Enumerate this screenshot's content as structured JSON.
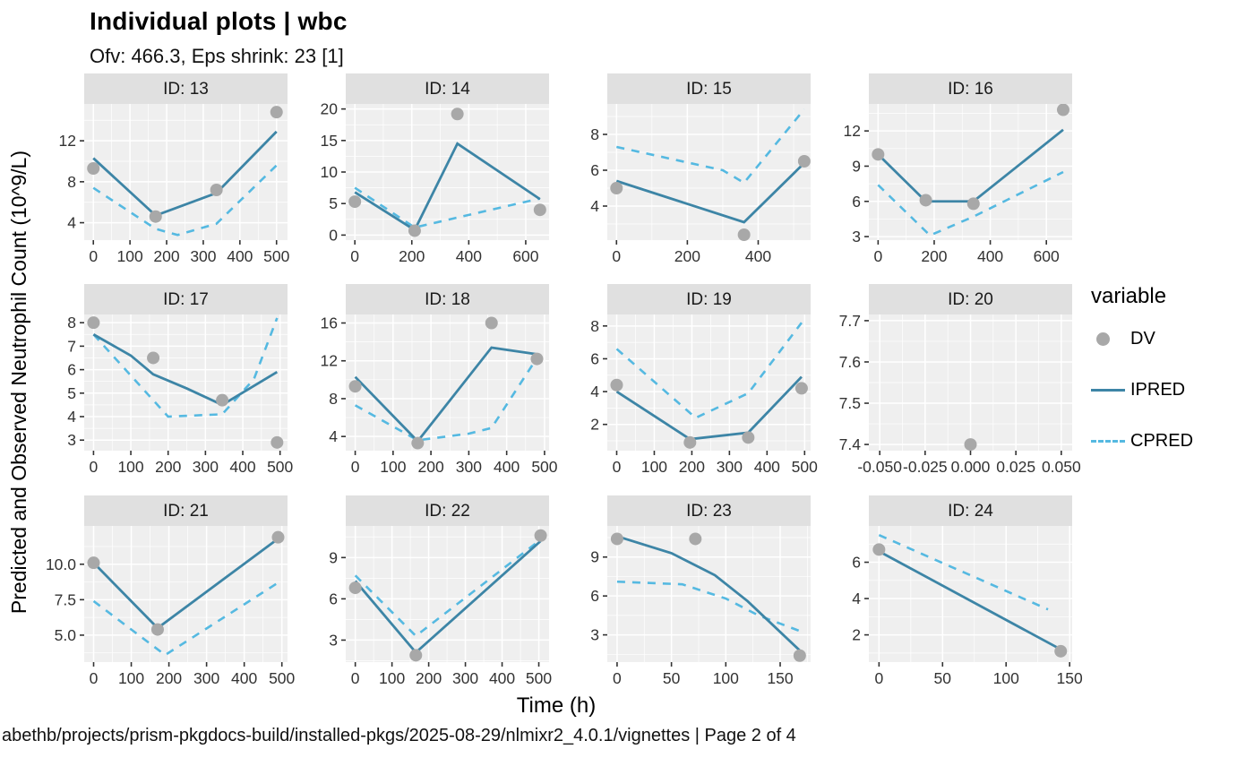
{
  "title": "Individual plots | wbc",
  "subtitle": "Ofv: 466.3, Eps shrink: 23 [1]",
  "ylabel": "Predicted and Observed Neutrophil Count (10^9/L)",
  "xlabel": "Time (h)",
  "caption": "abethb/projects/prism-pkgdocs-build/installed-pkgs/2025-08-29/nlmixr2_4.0.1/vignettes | Page 2 of 4",
  "legend": {
    "title": "variable",
    "items": [
      {
        "label": "DV",
        "type": "point"
      },
      {
        "label": "IPRED",
        "type": "solid"
      },
      {
        "label": "CPRED",
        "type": "dashed"
      }
    ]
  },
  "colors": {
    "ipred": "#3d85a6",
    "cpred": "#55b9e1",
    "dv": "#a8a8a8",
    "panel_bg": "#efefef",
    "strip_bg": "#e0e0e0",
    "grid_major": "#ffffff",
    "grid_minor": "#f8f8f8",
    "axis_text": "#333333",
    "strip_text": "#1a1a1a"
  },
  "chart_data": {
    "type": "line",
    "note": "Faceted individual fit plots: DV points, IPRED solid line, CPRED dashed line per subject",
    "facets": [
      {
        "strip": "ID: 13",
        "xlim": [
          -25,
          530
        ],
        "ylim": [
          2.3,
          15.6
        ],
        "xticks": [
          0,
          100,
          200,
          300,
          400,
          500
        ],
        "xtick_labels": [
          "0",
          "100",
          "200",
          "300",
          "400",
          "500"
        ],
        "yticks": [
          4,
          8,
          12
        ],
        "ytick_labels": [
          "4",
          "8",
          "12"
        ],
        "dv": [
          [
            0,
            9.3
          ],
          [
            170,
            4.6
          ],
          [
            336,
            7.2
          ],
          [
            500,
            14.8
          ]
        ],
        "ipred": [
          [
            0,
            10.3
          ],
          [
            170,
            4.7
          ],
          [
            336,
            6.9
          ],
          [
            500,
            12.9
          ]
        ],
        "cpred": [
          [
            0,
            7.4
          ],
          [
            170,
            3.4
          ],
          [
            230,
            2.8
          ],
          [
            336,
            3.9
          ],
          [
            500,
            9.6
          ]
        ]
      },
      {
        "strip": "ID: 14",
        "xlim": [
          -32,
          682
        ],
        "ylim": [
          -0.8,
          20.8
        ],
        "xticks": [
          0,
          200,
          400,
          600
        ],
        "xtick_labels": [
          "0",
          "200",
          "400",
          "600"
        ],
        "yticks": [
          0,
          5,
          10,
          15,
          20
        ],
        "ytick_labels": [
          "0",
          "5",
          "10",
          "15",
          "20"
        ],
        "dv": [
          [
            0,
            5.3
          ],
          [
            210,
            0.7
          ],
          [
            360,
            19.2
          ],
          [
            650,
            4.0
          ]
        ],
        "ipred": [
          [
            0,
            6.8
          ],
          [
            210,
            0.8
          ],
          [
            360,
            14.5
          ],
          [
            650,
            5.7
          ]
        ],
        "cpred": [
          [
            0,
            7.5
          ],
          [
            210,
            1.2
          ],
          [
            400,
            3.2
          ],
          [
            650,
            5.8
          ]
        ]
      },
      {
        "strip": "ID: 15",
        "xlim": [
          -26,
          548
        ],
        "ylim": [
          2.1,
          9.7
        ],
        "xticks": [
          0,
          200,
          400
        ],
        "xtick_labels": [
          "0",
          "200",
          "400"
        ],
        "yticks": [
          4,
          6,
          8
        ],
        "ytick_labels": [
          "4",
          "6",
          "8"
        ],
        "dv": [
          [
            0,
            5.0
          ],
          [
            360,
            2.4
          ],
          [
            530,
            6.5
          ]
        ],
        "ipred": [
          [
            0,
            5.4
          ],
          [
            360,
            3.1
          ],
          [
            530,
            6.4
          ]
        ],
        "cpred": [
          [
            0,
            7.3
          ],
          [
            300,
            6.0
          ],
          [
            360,
            5.3
          ],
          [
            530,
            9.4
          ]
        ]
      },
      {
        "strip": "ID: 16",
        "xlim": [
          -33,
          692
        ],
        "ylim": [
          2.7,
          14.3
        ],
        "xticks": [
          0,
          200,
          400,
          600
        ],
        "xtick_labels": [
          "0",
          "200",
          "400",
          "600"
        ],
        "yticks": [
          3,
          6,
          9,
          12
        ],
        "ytick_labels": [
          "3",
          "6",
          "9",
          "12"
        ],
        "dv": [
          [
            0,
            10.0
          ],
          [
            170,
            6.1
          ],
          [
            340,
            5.8
          ],
          [
            660,
            13.8
          ]
        ],
        "ipred": [
          [
            0,
            10.0
          ],
          [
            170,
            6.0
          ],
          [
            340,
            6.0
          ],
          [
            660,
            12.1
          ]
        ],
        "cpred": [
          [
            0,
            7.4
          ],
          [
            185,
            3.1
          ],
          [
            340,
            4.7
          ],
          [
            660,
            8.5
          ]
        ]
      },
      {
        "strip": "ID: 17",
        "xlim": [
          -25,
          520
        ],
        "ylim": [
          2.55,
          8.35
        ],
        "xticks": [
          0,
          100,
          200,
          300,
          400,
          500
        ],
        "xtick_labels": [
          "0",
          "100",
          "200",
          "300",
          "400",
          "500"
        ],
        "yticks": [
          3,
          4,
          5,
          6,
          7,
          8
        ],
        "ytick_labels": [
          "3",
          "4",
          "5",
          "6",
          "7",
          "8"
        ],
        "dv": [
          [
            0,
            8.0
          ],
          [
            160,
            6.5
          ],
          [
            345,
            4.7
          ],
          [
            492,
            2.9
          ]
        ],
        "ipred": [
          [
            0,
            7.5
          ],
          [
            100,
            6.6
          ],
          [
            160,
            5.8
          ],
          [
            250,
            5.2
          ],
          [
            345,
            4.5
          ],
          [
            492,
            5.9
          ]
        ],
        "cpred": [
          [
            0,
            7.5
          ],
          [
            200,
            4.0
          ],
          [
            345,
            4.1
          ],
          [
            430,
            5.6
          ],
          [
            492,
            8.2
          ]
        ]
      },
      {
        "strip": "ID: 18",
        "xlim": [
          -25,
          512
        ],
        "ylim": [
          2.5,
          16.9
        ],
        "xticks": [
          0,
          100,
          200,
          300,
          400,
          500
        ],
        "xtick_labels": [
          "0",
          "100",
          "200",
          "300",
          "400",
          "500"
        ],
        "yticks": [
          4,
          8,
          12,
          16
        ],
        "ytick_labels": [
          "4",
          "8",
          "12",
          "16"
        ],
        "dv": [
          [
            0,
            9.3
          ],
          [
            165,
            3.3
          ],
          [
            360,
            16.0
          ],
          [
            480,
            12.2
          ]
        ],
        "ipred": [
          [
            0,
            10.3
          ],
          [
            165,
            3.5
          ],
          [
            360,
            13.4
          ],
          [
            480,
            12.7
          ]
        ],
        "cpred": [
          [
            0,
            7.3
          ],
          [
            165,
            3.6
          ],
          [
            300,
            4.3
          ],
          [
            360,
            4.9
          ],
          [
            480,
            12.3
          ]
        ]
      },
      {
        "strip": "ID: 19",
        "xlim": [
          -25,
          516
        ],
        "ylim": [
          0.4,
          8.7
        ],
        "xticks": [
          0,
          100,
          200,
          300,
          400,
          500
        ],
        "xtick_labels": [
          "0",
          "100",
          "200",
          "300",
          "400",
          "500"
        ],
        "yticks": [
          2,
          4,
          6,
          8
        ],
        "ytick_labels": [
          "2",
          "4",
          "6",
          "8"
        ],
        "dv": [
          [
            0,
            4.4
          ],
          [
            195,
            0.9
          ],
          [
            350,
            1.2
          ],
          [
            492,
            4.2
          ]
        ],
        "ipred": [
          [
            0,
            4.0
          ],
          [
            195,
            1.1
          ],
          [
            350,
            1.5
          ],
          [
            492,
            4.9
          ]
        ],
        "cpred": [
          [
            0,
            6.6
          ],
          [
            210,
            2.4
          ],
          [
            350,
            3.9
          ],
          [
            492,
            8.2
          ]
        ]
      },
      {
        "strip": "ID: 20",
        "xlim": [
          -0.056,
          0.056
        ],
        "ylim": [
          7.385,
          7.715
        ],
        "xticks": [
          -0.05,
          -0.025,
          0,
          0.025,
          0.05
        ],
        "xtick_labels": [
          "-0.050",
          "-0.025",
          "0.000",
          "0.025",
          "0.050"
        ],
        "yticks": [
          7.4,
          7.5,
          7.6,
          7.7
        ],
        "ytick_labels": [
          "7.4",
          "7.5",
          "7.6",
          "7.7"
        ],
        "dv": [
          [
            0,
            7.4
          ]
        ],
        "ipred": [],
        "cpred": []
      },
      {
        "strip": "ID: 21",
        "xlim": [
          -25,
          515
        ],
        "ylim": [
          3.1,
          12.7
        ],
        "xticks": [
          0,
          100,
          200,
          300,
          400,
          500
        ],
        "xtick_labels": [
          "0",
          "100",
          "200",
          "300",
          "400",
          "500"
        ],
        "yticks": [
          5.0,
          7.5,
          10.0
        ],
        "ytick_labels": [
          "5.0",
          "7.5",
          "10.0"
        ],
        "dv": [
          [
            0,
            10.1
          ],
          [
            170,
            5.4
          ],
          [
            490,
            11.9
          ]
        ],
        "ipred": [
          [
            0,
            10.1
          ],
          [
            170,
            5.5
          ],
          [
            490,
            11.8
          ]
        ],
        "cpred": [
          [
            0,
            7.4
          ],
          [
            190,
            3.6
          ],
          [
            490,
            8.7
          ]
        ]
      },
      {
        "strip": "ID: 22",
        "xlim": [
          -26,
          528
        ],
        "ylim": [
          1.4,
          11.3
        ],
        "xticks": [
          0,
          100,
          200,
          300,
          400,
          500
        ],
        "xtick_labels": [
          "0",
          "100",
          "200",
          "300",
          "400",
          "500"
        ],
        "yticks": [
          3,
          6,
          9
        ],
        "ytick_labels": [
          "3",
          "6",
          "9"
        ],
        "dv": [
          [
            0,
            6.8
          ],
          [
            165,
            1.9
          ],
          [
            505,
            10.6
          ]
        ],
        "ipred": [
          [
            0,
            7.3
          ],
          [
            165,
            2.1
          ],
          [
            505,
            10.2
          ]
        ],
        "cpred": [
          [
            0,
            7.7
          ],
          [
            165,
            3.3
          ],
          [
            505,
            10.3
          ]
        ]
      },
      {
        "strip": "ID: 23",
        "xlim": [
          -9,
          178
        ],
        "ylim": [
          0.9,
          11.4
        ],
        "xticks": [
          0,
          50,
          100,
          150
        ],
        "xtick_labels": [
          "0",
          "50",
          "100",
          "150"
        ],
        "yticks": [
          3,
          6,
          9
        ],
        "ytick_labels": [
          "3",
          "6",
          "9"
        ],
        "dv": [
          [
            0,
            10.4
          ],
          [
            72,
            10.4
          ],
          [
            168,
            1.4
          ]
        ],
        "ipred": [
          [
            0,
            10.6
          ],
          [
            50,
            9.3
          ],
          [
            90,
            7.6
          ],
          [
            120,
            5.6
          ],
          [
            168,
            1.8
          ]
        ],
        "cpred": [
          [
            0,
            7.1
          ],
          [
            60,
            6.9
          ],
          [
            100,
            5.8
          ],
          [
            130,
            4.5
          ],
          [
            168,
            3.3
          ]
        ]
      },
      {
        "strip": "ID: 24",
        "xlim": [
          -8,
          152
        ],
        "ylim": [
          0.5,
          8.0
        ],
        "xticks": [
          0,
          50,
          100,
          150
        ],
        "xtick_labels": [
          "0",
          "50",
          "100",
          "150"
        ],
        "yticks": [
          2,
          4,
          6
        ],
        "ytick_labels": [
          "2",
          "4",
          "6"
        ],
        "dv": [
          [
            0,
            6.7
          ],
          [
            143,
            1.1
          ]
        ],
        "ipred": [
          [
            0,
            6.6
          ],
          [
            143,
            1.2
          ]
        ],
        "cpred": [
          [
            0,
            7.5
          ],
          [
            133,
            3.4
          ]
        ]
      }
    ]
  }
}
